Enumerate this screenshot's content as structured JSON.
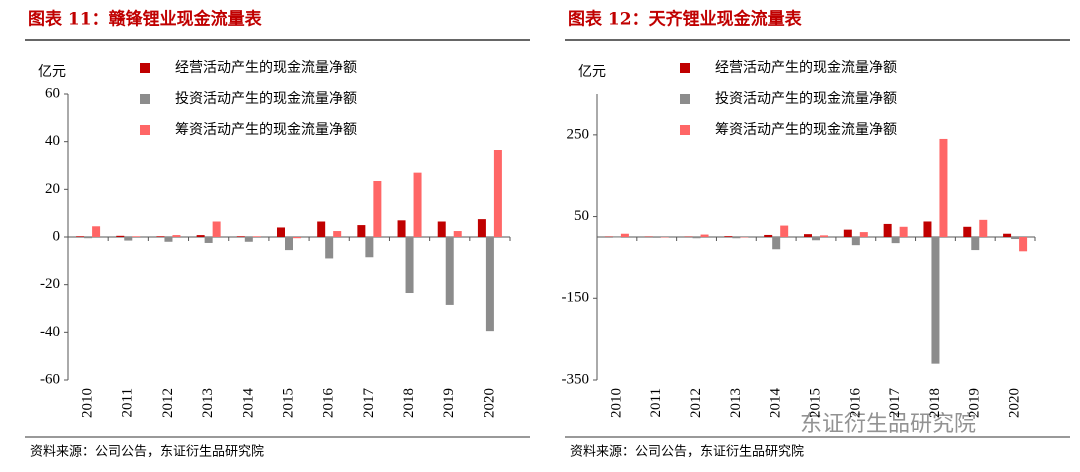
{
  "chart_data": [
    {
      "type": "bar",
      "title": "图表 11：赣锋锂业现金流量表",
      "y_label": "亿元",
      "categories": [
        "2010",
        "2011",
        "2012",
        "2013",
        "2014",
        "2015",
        "2016",
        "2017",
        "2018",
        "2019",
        "2020"
      ],
      "series": [
        {
          "name": "经营活动产生的现金流量净额",
          "color": "#c00000",
          "values": [
            0.3,
            0.5,
            0.3,
            0.8,
            0.3,
            4,
            6.5,
            5,
            7,
            6.5,
            7.5
          ]
        },
        {
          "name": "投资活动产生的现金流量净额",
          "color": "#8c8c8c",
          "values": [
            -0.5,
            -1.5,
            -2,
            -2.5,
            -2,
            -5.5,
            -9,
            -8.5,
            -23.5,
            -28.5,
            -39.5
          ]
        },
        {
          "name": "筹资活动产生的现金流量净额",
          "color": "#ff6666",
          "values": [
            4.5,
            0.3,
            0.8,
            6.5,
            0.3,
            -0.5,
            2.5,
            23.5,
            27,
            2.5,
            36.5
          ]
        }
      ],
      "ylim": [
        -60,
        60
      ],
      "yticks": [
        -60,
        -40,
        -20,
        0,
        20,
        40,
        60
      ],
      "source": "资料来源：公司公告，东证衍生品研究院"
    },
    {
      "type": "bar",
      "title": "图表 12：天齐锂业现金流量表",
      "y_label": "亿元",
      "categories": [
        "2010",
        "2011",
        "2012",
        "2013",
        "2014",
        "2015",
        "2016",
        "2017",
        "2018",
        "2019",
        "2020"
      ],
      "series": [
        {
          "name": "经营活动产生的现金流量净额",
          "color": "#c00000",
          "values": [
            1,
            1,
            1,
            2,
            5,
            7,
            18,
            32,
            38,
            25,
            8
          ]
        },
        {
          "name": "投资活动产生的现金流量净额",
          "color": "#8c8c8c",
          "values": [
            -1,
            -2,
            -3,
            -3,
            -30,
            -8,
            -20,
            -15,
            -310,
            -32,
            -5
          ]
        },
        {
          "name": "筹资活动产生的现金流量净额",
          "color": "#ff6666",
          "values": [
            8,
            -1,
            6,
            -1,
            28,
            4,
            12,
            25,
            240,
            42,
            -35
          ]
        }
      ],
      "ylim": [
        -350,
        350
      ],
      "yticks": [
        -350,
        -150,
        50,
        250
      ],
      "source": "资料来源：公司公告，东证衍生品研究院"
    }
  ],
  "watermark": "东证衍生品研究院"
}
